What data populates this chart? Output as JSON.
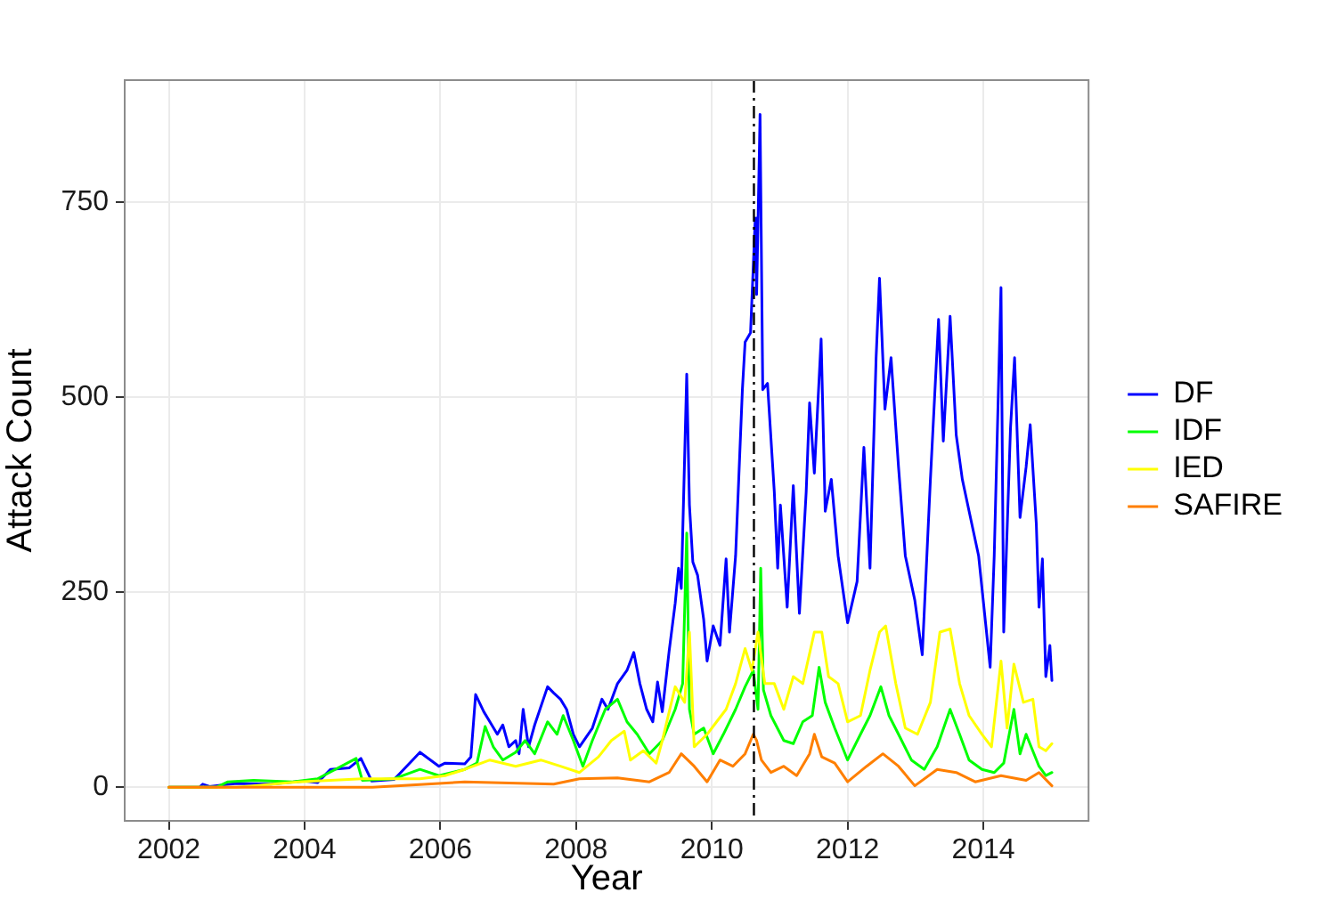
{
  "chart_data": {
    "type": "line",
    "xlabel": "Year",
    "ylabel": "Attack Count",
    "xlim": [
      2001.35,
      2015.55
    ],
    "xticks": [
      2002,
      2004,
      2006,
      2008,
      2010,
      2012,
      2014
    ],
    "ylim": [
      -43,
      907
    ],
    "yticks": [
      0,
      250,
      500,
      750
    ],
    "grid": true,
    "legend": "right",
    "series": [
      {
        "name": "DF",
        "color": "#0000ff",
        "x": [
          2002.0,
          2002.45,
          2002.5,
          2002.6,
          2003.0,
          2003.5,
          2004.0,
          2004.19,
          2004.38,
          2004.66,
          2004.83,
          2004.99,
          2005.32,
          2005.7,
          2005.98,
          2006.07,
          2006.36,
          2006.45,
          2006.52,
          2006.64,
          2006.73,
          2006.84,
          2006.92,
          2007.01,
          2007.11,
          2007.16,
          2007.22,
          2007.3,
          2007.39,
          2007.58,
          2007.67,
          2007.77,
          2007.86,
          2007.96,
          2008.05,
          2008.24,
          2008.38,
          2008.47,
          2008.61,
          2008.75,
          2008.85,
          2008.94,
          2009.04,
          2009.13,
          2009.2,
          2009.27,
          2009.37,
          2009.46,
          2009.51,
          2009.55,
          2009.63,
          2009.67,
          2009.72,
          2009.79,
          2009.88,
          2009.93,
          2010.02,
          2010.12,
          2010.21,
          2010.26,
          2010.35,
          2010.45,
          2010.49,
          2010.57,
          2010.64,
          2010.66,
          2010.71,
          2010.75,
          2010.82,
          2010.92,
          2010.97,
          2011.01,
          2011.11,
          2011.2,
          2011.29,
          2011.39,
          2011.44,
          2011.51,
          2011.61,
          2011.67,
          2011.76,
          2011.86,
          2012.0,
          2012.14,
          2012.24,
          2012.33,
          2012.42,
          2012.47,
          2012.55,
          2012.64,
          2012.75,
          2012.85,
          2012.99,
          2013.1,
          2013.22,
          2013.34,
          2013.41,
          2013.51,
          2013.6,
          2013.69,
          2013.79,
          2013.93,
          2014.1,
          2014.16,
          2014.26,
          2014.3,
          2014.4,
          2014.46,
          2014.54,
          2014.63,
          2014.69,
          2014.78,
          2014.82,
          2014.87,
          2014.92,
          2014.98,
          2015.01
        ],
        "values": [
          0,
          0,
          4,
          1,
          5,
          4,
          8,
          6,
          23,
          25,
          37,
          8,
          10,
          45,
          27,
          31,
          30,
          39,
          119,
          97,
          84,
          68,
          80,
          52,
          60,
          43,
          100,
          52,
          80,
          129,
          121,
          113,
          100,
          68,
          52,
          76,
          113,
          100,
          133,
          150,
          173,
          133,
          100,
          84,
          135,
          97,
          174,
          236,
          281,
          255,
          530,
          362,
          289,
          272,
          215,
          162,
          207,
          182,
          293,
          199,
          297,
          510,
          571,
          583,
          730,
          632,
          863,
          510,
          518,
          379,
          281,
          362,
          231,
          387,
          223,
          379,
          493,
          403,
          575,
          354,
          395,
          297,
          211,
          264,
          436,
          281,
          551,
          653,
          485,
          551,
          411,
          297,
          240,
          170,
          395,
          600,
          444,
          604,
          452,
          395,
          354,
          297,
          154,
          297,
          641,
          199,
          461,
          551,
          346,
          411,
          465,
          338,
          231,
          293,
          142,
          182,
          137
        ]
      },
      {
        "name": "IDF",
        "color": "#00ff00",
        "x": [
          2002.0,
          2002.7,
          2002.87,
          2003.25,
          2003.82,
          2004.19,
          2004.76,
          2004.85,
          2005.32,
          2005.7,
          2005.98,
          2006.36,
          2006.54,
          2006.66,
          2006.78,
          2006.92,
          2007.11,
          2007.25,
          2007.39,
          2007.58,
          2007.72,
          2007.81,
          2007.96,
          2008.1,
          2008.24,
          2008.43,
          2008.61,
          2008.75,
          2008.9,
          2009.08,
          2009.27,
          2009.46,
          2009.57,
          2009.63,
          2009.67,
          2009.74,
          2009.88,
          2010.02,
          2010.17,
          2010.35,
          2010.49,
          2010.61,
          2010.68,
          2010.72,
          2010.76,
          2010.87,
          2011.06,
          2011.2,
          2011.34,
          2011.48,
          2011.58,
          2011.67,
          2011.81,
          2012.0,
          2012.19,
          2012.33,
          2012.49,
          2012.61,
          2012.75,
          2012.94,
          2013.13,
          2013.32,
          2013.51,
          2013.65,
          2013.79,
          2013.98,
          2014.16,
          2014.3,
          2014.45,
          2014.54,
          2014.63,
          2014.82,
          2014.92,
          2015.01
        ],
        "values": [
          0,
          0,
          7,
          9,
          7,
          11,
          37,
          9,
          11,
          23,
          15,
          23,
          31,
          78,
          52,
          35,
          45,
          60,
          43,
          84,
          68,
          92,
          60,
          27,
          60,
          100,
          113,
          84,
          68,
          43,
          60,
          100,
          133,
          326,
          100,
          68,
          76,
          43,
          68,
          100,
          129,
          150,
          100,
          281,
          125,
          92,
          60,
          56,
          84,
          92,
          154,
          109,
          76,
          35,
          68,
          92,
          129,
          92,
          68,
          35,
          23,
          52,
          100,
          68,
          35,
          23,
          19,
          31,
          100,
          43,
          68,
          27,
          15,
          19
        ]
      },
      {
        "name": "IED",
        "color": "#ffff00",
        "x": [
          2002.0,
          2003.0,
          2003.91,
          2004.85,
          2005.7,
          2006.07,
          2006.36,
          2006.73,
          2007.11,
          2007.48,
          2007.77,
          2008.05,
          2008.33,
          2008.52,
          2008.71,
          2008.8,
          2008.99,
          2009.18,
          2009.27,
          2009.46,
          2009.6,
          2009.67,
          2009.74,
          2009.93,
          2010.07,
          2010.21,
          2010.35,
          2010.49,
          2010.59,
          2010.68,
          2010.78,
          2010.92,
          2011.06,
          2011.2,
          2011.34,
          2011.51,
          2011.62,
          2011.72,
          2011.86,
          2012.0,
          2012.19,
          2012.33,
          2012.47,
          2012.56,
          2012.71,
          2012.85,
          2013.03,
          2013.22,
          2013.36,
          2013.51,
          2013.65,
          2013.79,
          2013.98,
          2014.12,
          2014.26,
          2014.35,
          2014.45,
          2014.59,
          2014.73,
          2014.82,
          2014.92,
          2015.01
        ],
        "values": [
          0,
          0,
          7,
          11,
          11,
          15,
          23,
          35,
          27,
          35,
          27,
          19,
          39,
          60,
          72,
          35,
          47,
          31,
          60,
          129,
          109,
          199,
          52,
          68,
          84,
          100,
          133,
          178,
          150,
          199,
          133,
          133,
          100,
          142,
          133,
          199,
          199,
          142,
          133,
          84,
          92,
          150,
          199,
          207,
          133,
          76,
          68,
          109,
          199,
          203,
          133,
          92,
          68,
          52,
          162,
          76,
          158,
          109,
          113,
          52,
          47,
          56
        ]
      },
      {
        "name": "SAFIRE",
        "color": "#ff7f00",
        "x": [
          2002.0,
          2005.0,
          2005.41,
          2006.36,
          2007.67,
          2008.05,
          2008.61,
          2009.08,
          2009.37,
          2009.55,
          2009.74,
          2009.93,
          2010.12,
          2010.31,
          2010.49,
          2010.61,
          2010.66,
          2010.73,
          2010.87,
          2011.06,
          2011.25,
          2011.44,
          2011.51,
          2011.62,
          2011.81,
          2012.0,
          2012.28,
          2012.52,
          2012.75,
          2012.99,
          2013.32,
          2013.6,
          2013.88,
          2014.26,
          2014.63,
          2014.82,
          2015.01
        ],
        "values": [
          0,
          0,
          2,
          7,
          4,
          11,
          12,
          7,
          19,
          43,
          27,
          7,
          35,
          27,
          43,
          68,
          60,
          35,
          19,
          27,
          15,
          43,
          68,
          39,
          31,
          7,
          27,
          43,
          27,
          2,
          23,
          19,
          7,
          15,
          9,
          19,
          2
        ]
      }
    ],
    "ref_lines": [
      {
        "axis": "x",
        "value": 2010.62,
        "color": "#000000",
        "line_style": "dashdot"
      }
    ]
  }
}
